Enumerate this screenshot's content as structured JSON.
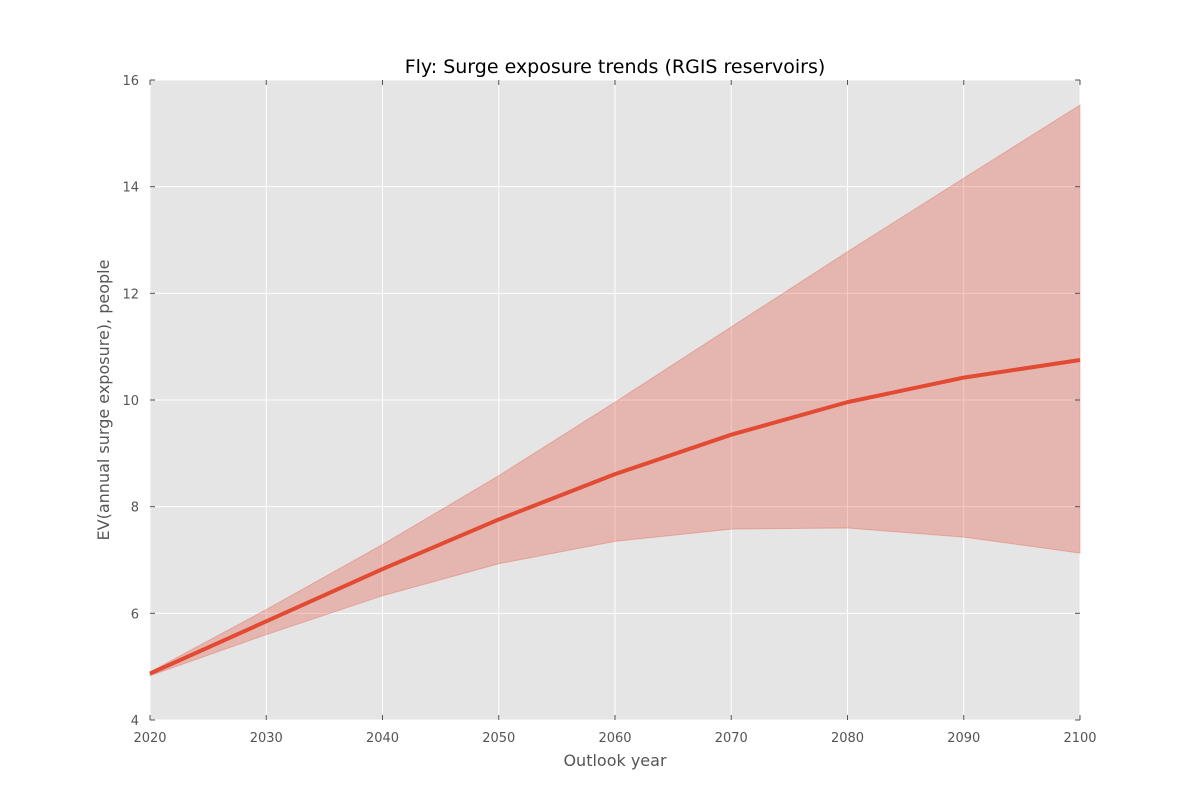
{
  "chart_data": {
    "type": "area",
    "title": "Fly: Surge exposure trends (RGIS reservoirs)",
    "xlabel": "Outlook year",
    "ylabel": "EV(annual surge exposure), people",
    "xlim": [
      2020,
      2100
    ],
    "ylim": [
      4,
      16
    ],
    "x_ticks": [
      2020,
      2030,
      2040,
      2050,
      2060,
      2070,
      2080,
      2090,
      2100
    ],
    "y_ticks": [
      4,
      6,
      8,
      10,
      12,
      14,
      16
    ],
    "grid": true,
    "legend": "none",
    "x": [
      2020,
      2030,
      2040,
      2050,
      2060,
      2070,
      2080,
      2090,
      2100
    ],
    "series": [
      {
        "values": [
          4.87,
          5.85,
          6.83,
          7.76,
          8.61,
          9.35,
          9.96,
          10.42,
          10.75
        ],
        "lower": [
          4.83,
          5.6,
          6.33,
          6.93,
          7.35,
          7.58,
          7.6,
          7.43,
          7.13
        ],
        "upper": [
          4.9,
          6.07,
          7.29,
          8.58,
          9.96,
          11.37,
          12.78,
          14.16,
          15.53
        ]
      }
    ],
    "colors": {
      "line": "#E24A33",
      "band": "#E24A33",
      "plot_background": "#E5E5E5",
      "grid": "#FFFFFF"
    }
  }
}
